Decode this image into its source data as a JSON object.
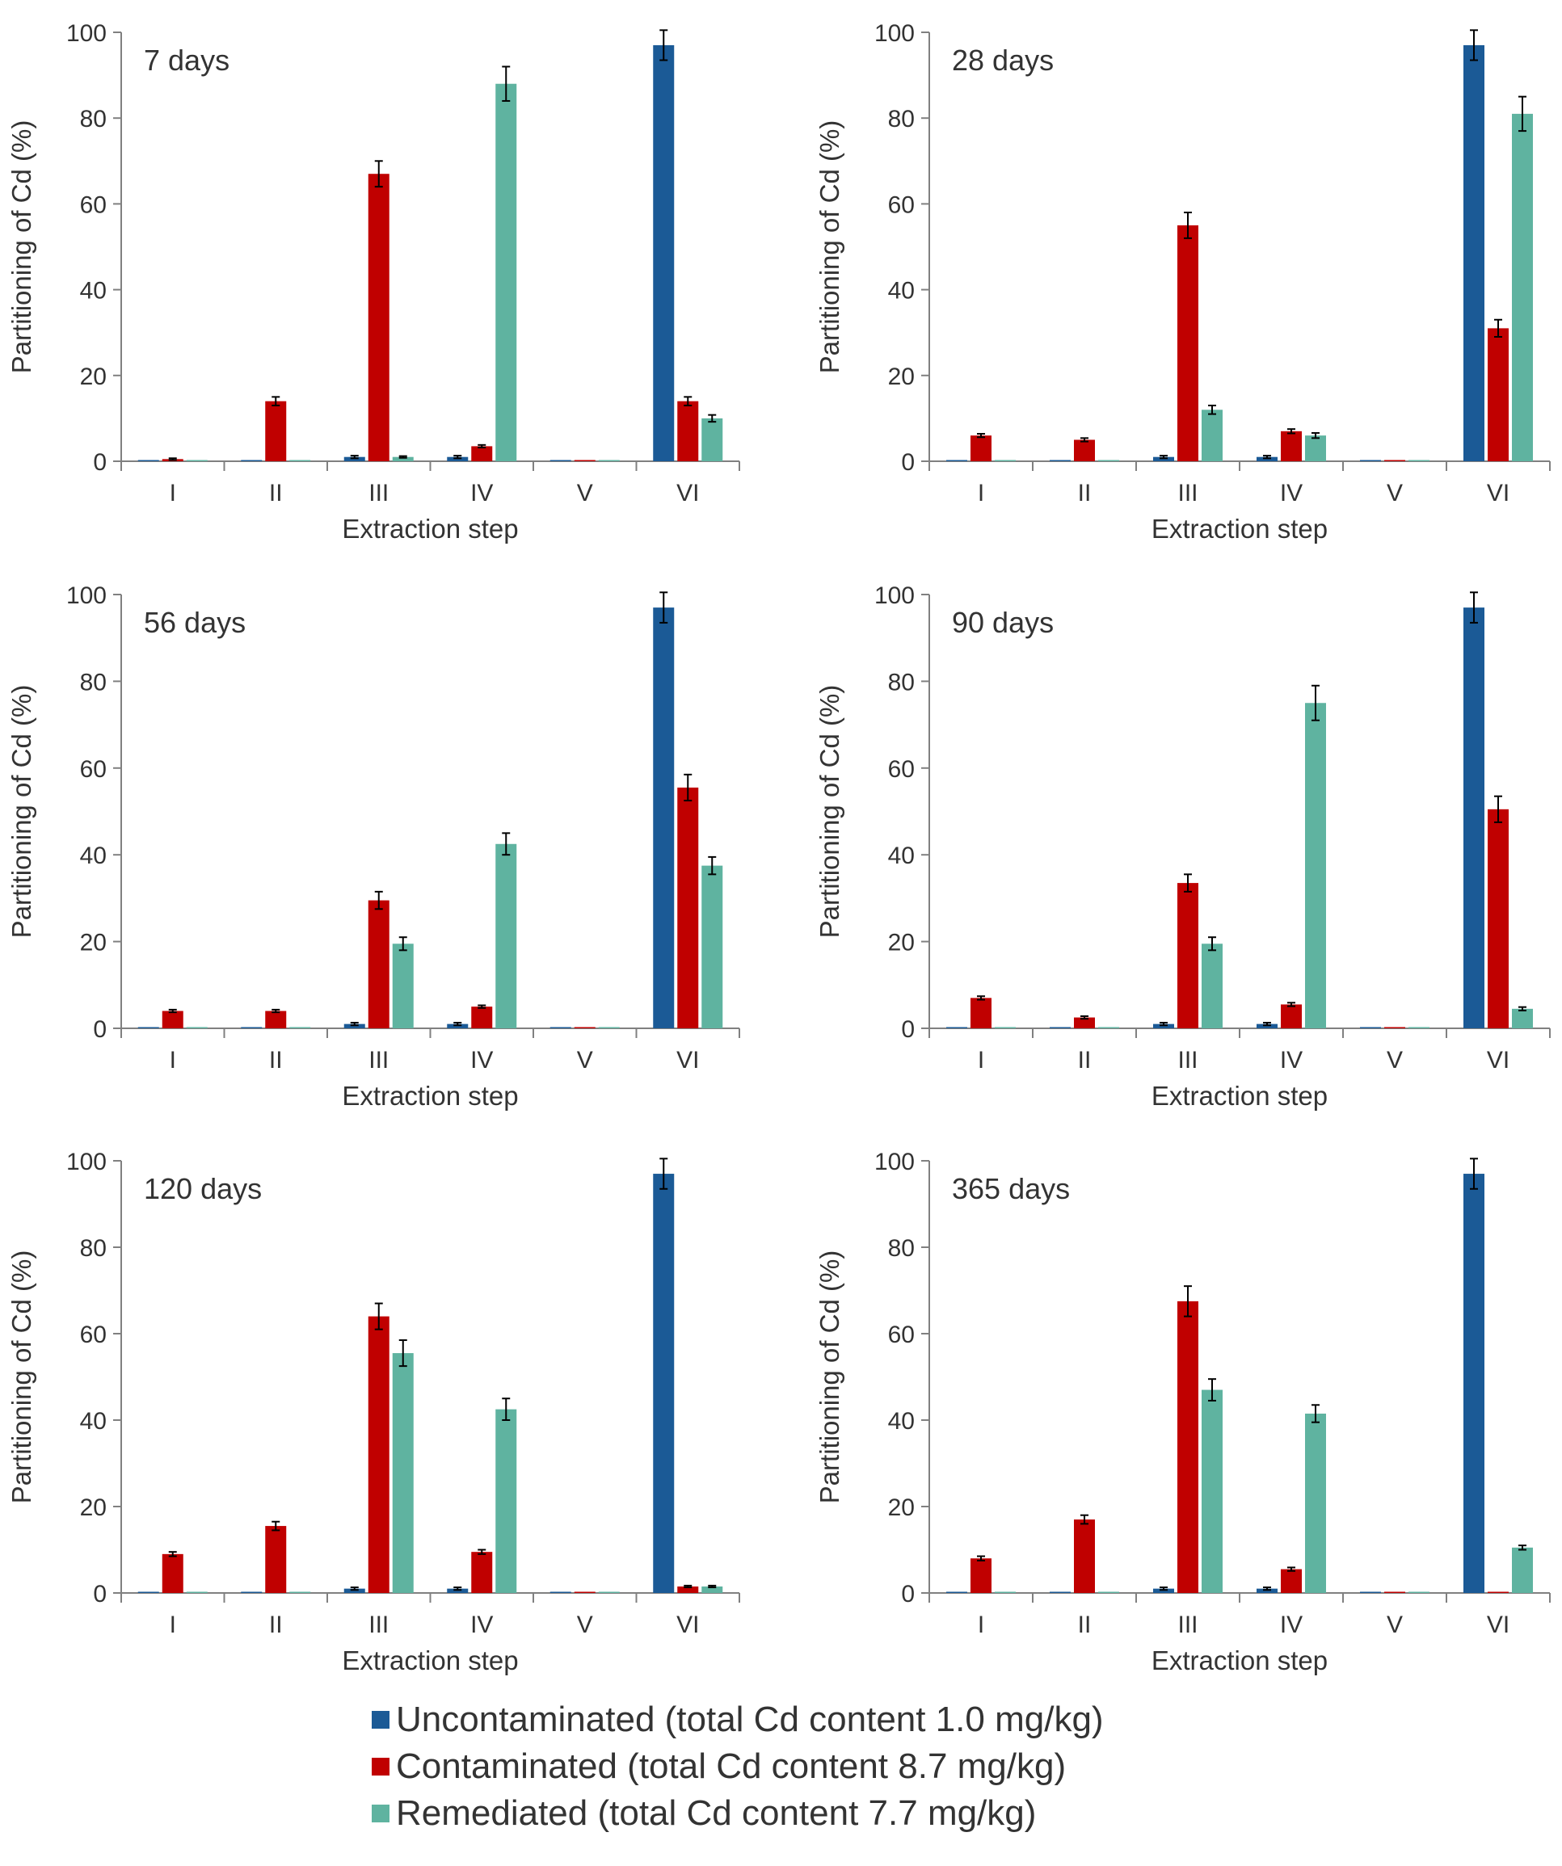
{
  "colors": {
    "uncontaminated": "#1b5a96",
    "contaminated": "#c00000",
    "remediated": "#5fb3a0",
    "axis": "#808080",
    "text": "#333333"
  },
  "chart_data": [
    {
      "type": "bar",
      "title": "7 days",
      "categories": [
        "I",
        "II",
        "III",
        "IV",
        "V",
        "VI"
      ],
      "xlabel": "Extraction step",
      "ylabel": "Partitioning of Cd (%)",
      "ylim": [
        0,
        100
      ],
      "yticks": [
        0,
        20,
        40,
        60,
        80,
        100
      ],
      "series": [
        {
          "name": "Uncontaminated",
          "values": [
            0,
            0,
            1,
            1,
            0,
            97
          ],
          "errors": [
            0,
            0,
            0.3,
            0.3,
            0,
            3.5
          ]
        },
        {
          "name": "Contaminated",
          "values": [
            0.5,
            14,
            67,
            3.5,
            0,
            14
          ],
          "errors": [
            0.2,
            1,
            3,
            0.3,
            0,
            1
          ]
        },
        {
          "name": "Remediated",
          "values": [
            0,
            0,
            1,
            88,
            0,
            10
          ],
          "errors": [
            0,
            0,
            0.2,
            4,
            0,
            0.8
          ]
        }
      ]
    },
    {
      "type": "bar",
      "title": "28 days",
      "categories": [
        "I",
        "II",
        "III",
        "IV",
        "V",
        "VI"
      ],
      "xlabel": "Extraction step",
      "ylabel": "Partitioning of Cd (%)",
      "ylim": [
        0,
        100
      ],
      "yticks": [
        0,
        20,
        40,
        60,
        80,
        100
      ],
      "series": [
        {
          "name": "Uncontaminated",
          "values": [
            0,
            0,
            1,
            1,
            0,
            97
          ],
          "errors": [
            0,
            0,
            0.3,
            0.3,
            0,
            3.5
          ]
        },
        {
          "name": "Contaminated",
          "values": [
            6,
            5,
            55,
            7,
            0,
            31
          ],
          "errors": [
            0.4,
            0.4,
            3,
            0.5,
            0,
            2
          ]
        },
        {
          "name": "Remediated",
          "values": [
            0,
            0,
            12,
            6,
            0,
            81
          ],
          "errors": [
            0,
            0,
            1,
            0.6,
            0,
            4
          ]
        }
      ]
    },
    {
      "type": "bar",
      "title": "56 days",
      "categories": [
        "I",
        "II",
        "III",
        "IV",
        "V",
        "VI"
      ],
      "xlabel": "Extraction step",
      "ylabel": "Partitioning of Cd (%)",
      "ylim": [
        0,
        100
      ],
      "yticks": [
        0,
        20,
        40,
        60,
        80,
        100
      ],
      "series": [
        {
          "name": "Uncontaminated",
          "values": [
            0,
            0,
            1,
            1,
            0,
            97
          ],
          "errors": [
            0,
            0,
            0.3,
            0.3,
            0,
            3.5
          ]
        },
        {
          "name": "Contaminated",
          "values": [
            4,
            4,
            29.5,
            5,
            0,
            55.5
          ],
          "errors": [
            0.3,
            0.3,
            2,
            0.3,
            0,
            3
          ]
        },
        {
          "name": "Remediated",
          "values": [
            0,
            0,
            19.5,
            42.5,
            0,
            37.5
          ],
          "errors": [
            0,
            0,
            1.5,
            2.5,
            0,
            2
          ]
        }
      ]
    },
    {
      "type": "bar",
      "title": "90 days",
      "categories": [
        "I",
        "II",
        "III",
        "IV",
        "V",
        "VI"
      ],
      "xlabel": "Extraction step",
      "ylabel": "Partitioning of Cd (%)",
      "ylim": [
        0,
        100
      ],
      "yticks": [
        0,
        20,
        40,
        60,
        80,
        100
      ],
      "series": [
        {
          "name": "Uncontaminated",
          "values": [
            0,
            0,
            1,
            1,
            0,
            97
          ],
          "errors": [
            0,
            0,
            0.3,
            0.3,
            0,
            3.5
          ]
        },
        {
          "name": "Contaminated",
          "values": [
            7,
            2.5,
            33.5,
            5.5,
            0,
            50.5
          ],
          "errors": [
            0.4,
            0.3,
            2,
            0.4,
            0,
            3
          ]
        },
        {
          "name": "Remediated",
          "values": [
            0,
            0,
            19.5,
            75,
            0,
            4.5
          ],
          "errors": [
            0,
            0,
            1.5,
            4,
            0,
            0.4
          ]
        }
      ]
    },
    {
      "type": "bar",
      "title": "120 days",
      "categories": [
        "I",
        "II",
        "III",
        "IV",
        "V",
        "VI"
      ],
      "xlabel": "Extraction step",
      "ylabel": "Partitioning of Cd (%)",
      "ylim": [
        0,
        100
      ],
      "yticks": [
        0,
        20,
        40,
        60,
        80,
        100
      ],
      "series": [
        {
          "name": "Uncontaminated",
          "values": [
            0,
            0,
            1,
            1,
            0,
            97
          ],
          "errors": [
            0,
            0,
            0.3,
            0.3,
            0,
            3.5
          ]
        },
        {
          "name": "Contaminated",
          "values": [
            9,
            15.5,
            64,
            9.5,
            0,
            1.5
          ],
          "errors": [
            0.5,
            1,
            3,
            0.5,
            0,
            0.2
          ]
        },
        {
          "name": "Remediated",
          "values": [
            0,
            0,
            55.5,
            42.5,
            0,
            1.5
          ],
          "errors": [
            0,
            0,
            3,
            2.5,
            0,
            0.2
          ]
        }
      ]
    },
    {
      "type": "bar",
      "title": "365 days",
      "categories": [
        "I",
        "II",
        "III",
        "IV",
        "V",
        "VI"
      ],
      "xlabel": "Extraction step",
      "ylabel": "Partitioning of Cd (%)",
      "ylim": [
        0,
        100
      ],
      "yticks": [
        0,
        20,
        40,
        60,
        80,
        100
      ],
      "series": [
        {
          "name": "Uncontaminated",
          "values": [
            0,
            0,
            1,
            1,
            0,
            97
          ],
          "errors": [
            0,
            0,
            0.3,
            0.3,
            0,
            3.5
          ]
        },
        {
          "name": "Contaminated",
          "values": [
            8,
            17,
            67.5,
            5.5,
            0,
            0
          ],
          "errors": [
            0.5,
            1,
            3.5,
            0.4,
            0,
            0
          ]
        },
        {
          "name": "Remediated",
          "values": [
            0,
            0,
            47,
            41.5,
            0,
            10.5
          ],
          "errors": [
            0,
            0,
            2.5,
            2,
            0,
            0.5
          ]
        }
      ]
    }
  ],
  "legend": [
    {
      "key": "uncontaminated",
      "label": "Uncontaminated (total Cd content 1.0 mg/kg)"
    },
    {
      "key": "contaminated",
      "label": "Contaminated (total Cd content 8.7 mg/kg)"
    },
    {
      "key": "remediated",
      "label": "Remediated (total Cd content 7.7 mg/kg)"
    }
  ]
}
